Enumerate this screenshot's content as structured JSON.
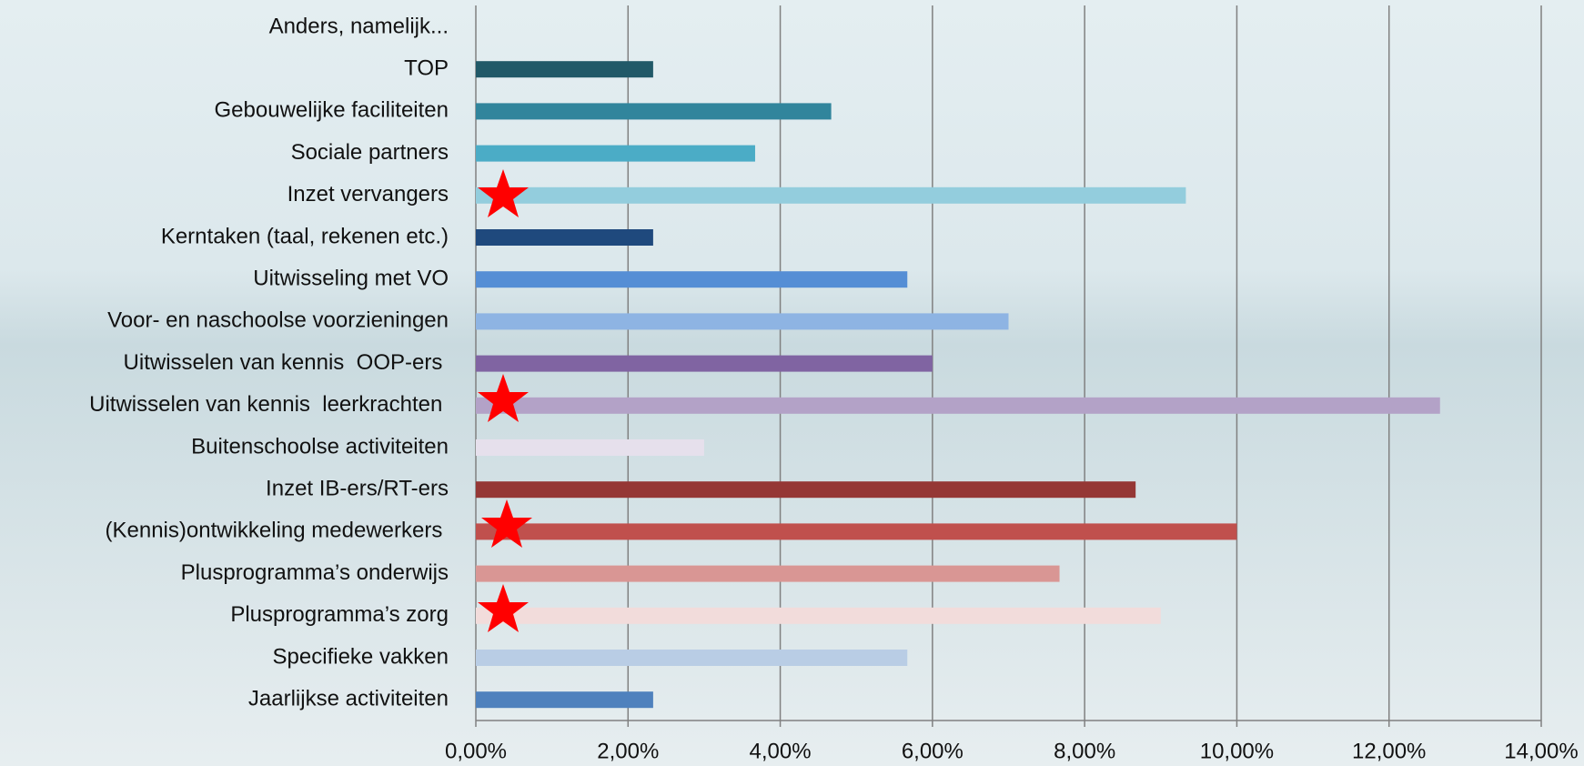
{
  "chart_data": {
    "type": "hbar",
    "categories": [
      "Anders, namelijk...",
      "TOP",
      "Gebouwelijke faciliteiten",
      "Sociale partners",
      "Inzet vervangers",
      "Kerntaken (taal, rekenen etc.)",
      "Uitwisseling met VO",
      "Voor- en naschoolse voorzieningen",
      "Uitwisselen van kennis  OOP-ers ",
      "Uitwisselen van kennis  leerkrachten ",
      "Buitenschoolse activiteiten",
      "Inzet IB-ers/RT-ers",
      "(Kennis)ontwikkeling medewerkers ",
      "Plusprogramma’s onderwijs",
      "Plusprogramma’s zorg",
      "Specifieke vakken",
      "Jaarlijkse activiteiten"
    ],
    "values": [
      0,
      2.33,
      4.67,
      3.67,
      9.33,
      2.33,
      5.67,
      7.0,
      6.0,
      12.67,
      3.0,
      8.67,
      10.0,
      7.67,
      9.0,
      5.67,
      2.33
    ],
    "colors": [
      "#4f81bd",
      "#215968",
      "#31859c",
      "#4bacc6",
      "#93cddd",
      "#1f497d",
      "#558ed5",
      "#8eb4e3",
      "#8064a2",
      "#b3a2c7",
      "#e6e0ec",
      "#953735",
      "#c0504d",
      "#d99694",
      "#f2dcdb",
      "#b9cde5",
      "#4f81bd"
    ],
    "xlim": [
      0,
      14
    ],
    "xticks": [
      {
        "value": 0,
        "label": "0,00%"
      },
      {
        "value": 2,
        "label": "2,00%"
      },
      {
        "value": 4,
        "label": "4,00%"
      },
      {
        "value": 6,
        "label": "6,00%"
      },
      {
        "value": 8,
        "label": "8,00%"
      },
      {
        "value": 10,
        "label": "10,00%"
      },
      {
        "value": 12,
        "label": "12,00%"
      },
      {
        "value": 14,
        "label": "14,00%"
      }
    ],
    "grid": true
  }
}
